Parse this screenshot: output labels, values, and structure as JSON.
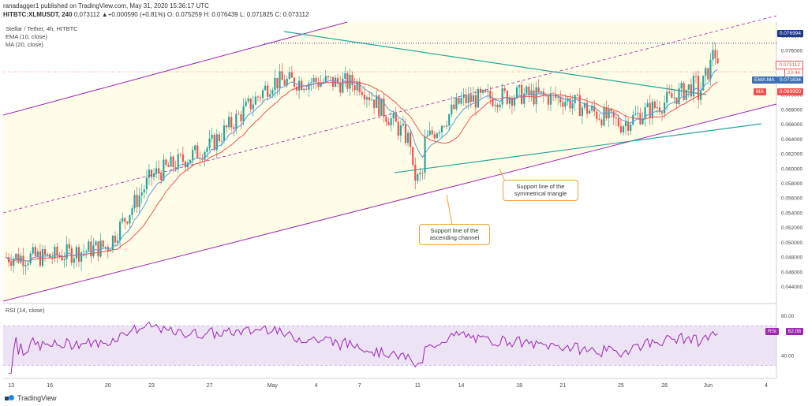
{
  "header": {
    "published": "ranadagger1 published on TradingView.com, May 31, 2020 15:36:17 UTC",
    "ticker_line": "HITBTC:XLMUSDT, 240",
    "change": "0.073112 ▲+0.000590 (+0.81%)",
    "ohlc": "O: 0.075259 H: 0.076439 L: 0.071825 C: 0.073112"
  },
  "legend": {
    "symbol": "Stellar / Tether, 4h, HITBTC",
    "ema": "EMA (10, close)",
    "ma": "MA (20, close)"
  },
  "price_tags": {
    "top": "0.076994",
    "current": "0.073112",
    "timer": "23:44",
    "ema_label": "EMA:MA",
    "ema_value": "0.071834",
    "ma_label": "MA",
    "ma_value": "0.069950",
    "rsi_label": "RSI",
    "rsi_value": "62.08"
  },
  "annotations": {
    "triangle": "Support line of the symmetrical triangle",
    "channel": "Support line of the ascending channel"
  },
  "rsi": {
    "label": "RSI (14, close)"
  },
  "branding": "TradingView",
  "colors": {
    "up": "#26a69a",
    "down": "#ef5350",
    "ema": "#5b9bd5",
    "ma": "#ef5350",
    "channel": "#9c27b0",
    "triangle": "#26a69a",
    "rsi": "#9c27b0",
    "callout_border": "#f0a030"
  },
  "chart_data": [
    {
      "type": "candlestick",
      "title": "Stellar / Tether, 4h, HITBTC",
      "y_ticks": [
        "0.078000",
        "0.076000",
        "0.074000",
        "0.072000",
        "0.070000",
        "0.068000",
        "0.066000",
        "0.064000",
        "0.062000",
        "0.060000",
        "0.058000",
        "0.056000",
        "0.054000",
        "0.052000",
        "0.050000",
        "0.048000",
        "0.046000",
        "0.044000"
      ],
      "x_ticks": [
        "13",
        "16",
        "20",
        "23",
        "27",
        "May",
        "4",
        "7",
        "11",
        "14",
        "18",
        "21",
        "25",
        "28",
        "Jun",
        "4"
      ],
      "ylim": [
        0.0432,
        0.079
      ],
      "key_points": {
        "x": [
          "May 13",
          "May 16",
          "May 20",
          "May 23",
          "May 27",
          "May 1",
          "May 4",
          "May 7",
          "May 11",
          "May 14",
          "May 18",
          "May 21",
          "May 25",
          "May 28",
          "May 31"
        ],
        "close_approx": [
          0.048,
          0.048,
          0.0495,
          0.059,
          0.063,
          0.0718,
          0.0718,
          0.0715,
          0.0625,
          0.0692,
          0.07,
          0.0695,
          0.066,
          0.069,
          0.0731
        ]
      },
      "levels": {
        "resistance_dotted": 0.076994,
        "current_price": 0.073112,
        "ema_10": 0.071834,
        "ma_20": 0.06995
      }
    },
    {
      "type": "line",
      "title": "RSI (14, close)",
      "y_ticks": [
        "80.00",
        "40.00"
      ],
      "last_value": 62.08,
      "band": [
        30,
        70
      ]
    }
  ]
}
